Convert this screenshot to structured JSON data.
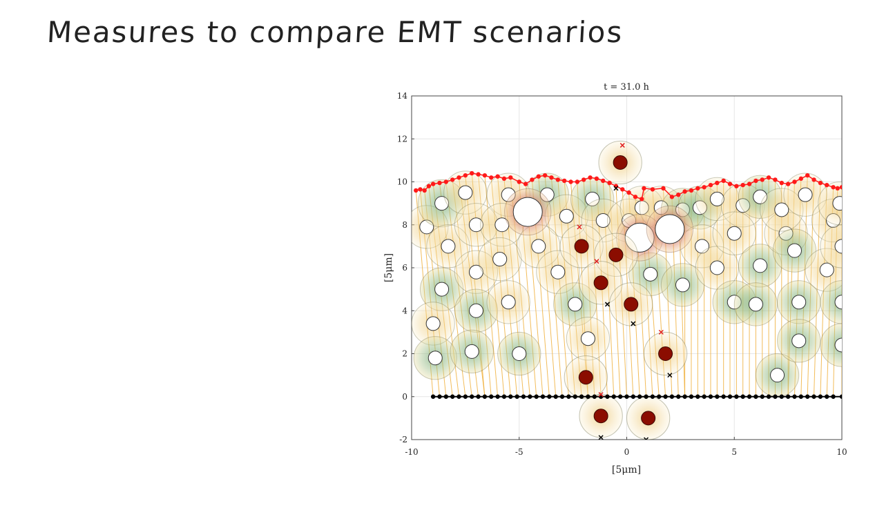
{
  "slide": {
    "title": "Measures to compare EMT scenarios"
  },
  "colors": {
    "apical_line": "#ff1a1a",
    "basal_line": "#000000",
    "emt_nucleus": "#8b0d00",
    "cell_green": "#7db08a",
    "cell_yellow": "#f0c860",
    "spring": "#f0b03c"
  },
  "chart_data": {
    "type": "scatter",
    "title": "t = 31.0 h",
    "xlabel": "[5μm]",
    "ylabel": "[5μm]",
    "xlim": [
      -10,
      10
    ],
    "ylim": [
      -2,
      14
    ],
    "xticks": [
      -10,
      -5,
      0,
      5,
      10
    ],
    "yticks": [
      -2,
      0,
      2,
      4,
      6,
      8,
      10,
      12,
      14
    ],
    "grid": true,
    "apical_points": [
      [
        -9.8,
        9.6
      ],
      [
        -9.6,
        9.65
      ],
      [
        -9.4,
        9.6
      ],
      [
        -9.2,
        9.8
      ],
      [
        -9.0,
        9.9
      ],
      [
        -8.7,
        9.95
      ],
      [
        -8.4,
        10.0
      ],
      [
        -8.1,
        10.1
      ],
      [
        -7.8,
        10.2
      ],
      [
        -7.5,
        10.3
      ],
      [
        -7.2,
        10.4
      ],
      [
        -6.9,
        10.35
      ],
      [
        -6.6,
        10.3
      ],
      [
        -6.3,
        10.2
      ],
      [
        -6.0,
        10.25
      ],
      [
        -5.7,
        10.15
      ],
      [
        -5.4,
        10.2
      ],
      [
        -5.0,
        10.0
      ],
      [
        -4.7,
        9.9
      ],
      [
        -4.4,
        10.1
      ],
      [
        -4.1,
        10.25
      ],
      [
        -3.8,
        10.3
      ],
      [
        -3.5,
        10.2
      ],
      [
        -3.2,
        10.1
      ],
      [
        -2.9,
        10.05
      ],
      [
        -2.6,
        10.0
      ],
      [
        -2.3,
        10.0
      ],
      [
        -2.0,
        10.1
      ],
      [
        -1.7,
        10.2
      ],
      [
        -1.4,
        10.15
      ],
      [
        -1.1,
        10.05
      ],
      [
        -0.8,
        9.95
      ],
      [
        -0.5,
        9.8
      ],
      [
        -0.2,
        9.65
      ],
      [
        0.1,
        9.5
      ],
      [
        0.4,
        9.3
      ],
      [
        0.7,
        9.2
      ],
      [
        0.8,
        9.7
      ],
      [
        1.2,
        9.65
      ],
      [
        1.7,
        9.7
      ],
      [
        2.1,
        9.3
      ],
      [
        2.4,
        9.4
      ],
      [
        2.7,
        9.55
      ],
      [
        3.0,
        9.6
      ],
      [
        3.3,
        9.7
      ],
      [
        3.6,
        9.75
      ],
      [
        3.9,
        9.85
      ],
      [
        4.2,
        9.95
      ],
      [
        4.5,
        10.05
      ],
      [
        4.8,
        9.9
      ],
      [
        5.1,
        9.8
      ],
      [
        5.4,
        9.85
      ],
      [
        5.7,
        9.9
      ],
      [
        6.0,
        10.05
      ],
      [
        6.3,
        10.1
      ],
      [
        6.6,
        10.2
      ],
      [
        6.9,
        10.1
      ],
      [
        7.2,
        9.95
      ],
      [
        7.5,
        9.9
      ],
      [
        7.8,
        10.0
      ],
      [
        8.1,
        10.15
      ],
      [
        8.4,
        10.3
      ],
      [
        8.7,
        10.1
      ],
      [
        9.0,
        9.95
      ],
      [
        9.3,
        9.85
      ],
      [
        9.6,
        9.75
      ],
      [
        9.8,
        9.7
      ],
      [
        10.0,
        9.75
      ]
    ],
    "basal_x": [
      -9.0,
      -8.7,
      -8.4,
      -8.1,
      -7.8,
      -7.5,
      -7.2,
      -6.9,
      -6.6,
      -6.3,
      -6.0,
      -5.7,
      -5.4,
      -5.1,
      -4.8,
      -4.5,
      -4.2,
      -3.9,
      -3.6,
      -3.3,
      -3.0,
      -2.7,
      -2.4,
      -2.1,
      -1.8,
      -1.5,
      -1.2,
      -0.9,
      -0.6,
      -0.3,
      0.0,
      0.3,
      0.6,
      0.9,
      1.2,
      1.5,
      1.8,
      2.1,
      2.4,
      2.7,
      3.0,
      3.3,
      3.6,
      3.9,
      4.2,
      4.5,
      4.8,
      5.1,
      5.4,
      5.7,
      6.0,
      6.3,
      6.6,
      6.9,
      7.2,
      7.5,
      7.8,
      8.1,
      8.4,
      8.7,
      9.0,
      9.3,
      9.6,
      10.0
    ],
    "cells": [
      [
        -9.3,
        7.9,
        1.0,
        "y"
      ],
      [
        -8.6,
        9.0,
        1.1,
        "g"
      ],
      [
        -8.3,
        7.0,
        1.0,
        "y"
      ],
      [
        -8.6,
        5.0,
        1.0,
        "g"
      ],
      [
        -9.0,
        3.4,
        1.0,
        "y"
      ],
      [
        -8.9,
        1.8,
        1.0,
        "g"
      ],
      [
        -7.5,
        9.5,
        1.0,
        "y"
      ],
      [
        -7.0,
        8.0,
        1.0,
        "y"
      ],
      [
        -7.0,
        5.8,
        1.0,
        "y"
      ],
      [
        -7.0,
        4.0,
        1.0,
        "g"
      ],
      [
        -7.2,
        2.1,
        1.0,
        "g"
      ],
      [
        -5.5,
        9.4,
        1.0,
        "y"
      ],
      [
        -5.8,
        8.0,
        1.0,
        "y"
      ],
      [
        -5.9,
        6.4,
        1.0,
        "y"
      ],
      [
        -5.5,
        4.4,
        1.0,
        "y"
      ],
      [
        -5.0,
        2.0,
        1.0,
        "g"
      ],
      [
        -3.7,
        9.4,
        1.0,
        "g"
      ],
      [
        -2.8,
        8.4,
        1.0,
        "y"
      ],
      [
        -4.1,
        7.0,
        1.0,
        "y"
      ],
      [
        -3.2,
        5.8,
        1.0,
        "y"
      ],
      [
        -2.4,
        4.3,
        1.0,
        "g"
      ],
      [
        -1.8,
        2.7,
        1.0,
        "y"
      ],
      [
        -1.6,
        9.2,
        1.0,
        "g"
      ],
      [
        -1.1,
        8.2,
        1.0,
        "y"
      ],
      [
        0.1,
        8.2,
        1.0,
        "y"
      ],
      [
        0.7,
        8.8,
        1.0,
        "y"
      ],
      [
        1.6,
        8.8,
        1.0,
        "y"
      ],
      [
        2.6,
        8.7,
        1.0,
        "g"
      ],
      [
        3.4,
        8.8,
        1.0,
        "g"
      ],
      [
        1.1,
        5.7,
        1.0,
        "g"
      ],
      [
        2.6,
        5.2,
        1.0,
        "g"
      ],
      [
        3.5,
        7.0,
        1.0,
        "y"
      ],
      [
        4.2,
        9.2,
        1.0,
        "y"
      ],
      [
        4.2,
        6.0,
        1.0,
        "y"
      ],
      [
        5.0,
        4.4,
        1.0,
        "g"
      ],
      [
        5.4,
        8.9,
        1.0,
        "y"
      ],
      [
        5.0,
        7.6,
        1.0,
        "y"
      ],
      [
        6.2,
        9.3,
        1.0,
        "g"
      ],
      [
        6.2,
        6.1,
        1.0,
        "g"
      ],
      [
        6.0,
        4.3,
        1.0,
        "g"
      ],
      [
        7.0,
        1.0,
        1.0,
        "g"
      ],
      [
        7.4,
        7.6,
        1.0,
        "y"
      ],
      [
        7.2,
        8.7,
        1.0,
        "y"
      ],
      [
        7.8,
        6.8,
        1.0,
        "g"
      ],
      [
        8.0,
        4.4,
        1.0,
        "g"
      ],
      [
        8.0,
        2.6,
        1.0,
        "g"
      ],
      [
        8.3,
        9.4,
        1.0,
        "y"
      ],
      [
        9.3,
        5.9,
        1.0,
        "y"
      ],
      [
        9.6,
        8.2,
        1.0,
        "y"
      ],
      [
        9.9,
        9.0,
        1.0,
        "y"
      ],
      [
        10.0,
        7.0,
        1.0,
        "y"
      ],
      [
        10.0,
        4.4,
        1.0,
        "g"
      ],
      [
        10.0,
        2.4,
        1.0,
        "g"
      ]
    ],
    "big_cells": [
      [
        -4.6,
        8.6,
        1.5
      ],
      [
        0.6,
        7.4,
        1.5
      ],
      [
        2.0,
        7.8,
        1.5
      ]
    ],
    "emt_cells": [
      [
        -0.3,
        10.9,
        1.0
      ],
      [
        -2.1,
        7.0,
        1.0
      ],
      [
        -0.5,
        6.6,
        1.0
      ],
      [
        -1.2,
        5.3,
        1.0
      ],
      [
        0.2,
        4.3,
        1.0
      ],
      [
        1.8,
        2.0,
        1.0
      ],
      [
        -1.9,
        0.9,
        1.0
      ],
      [
        -1.2,
        -0.9,
        1.0
      ],
      [
        1.0,
        -1.0,
        1.0
      ]
    ],
    "red_markers": [
      [
        -0.2,
        11.7
      ],
      [
        -2.2,
        7.9
      ],
      [
        -1.4,
        6.3
      ],
      [
        1.6,
        3.0
      ],
      [
        -1.2,
        0.1
      ]
    ],
    "black_markers": [
      [
        -0.5,
        9.7
      ],
      [
        -0.9,
        4.3
      ],
      [
        0.3,
        3.4
      ],
      [
        2.0,
        1.0
      ],
      [
        -1.2,
        -1.9
      ],
      [
        0.9,
        -2.0
      ]
    ]
  }
}
